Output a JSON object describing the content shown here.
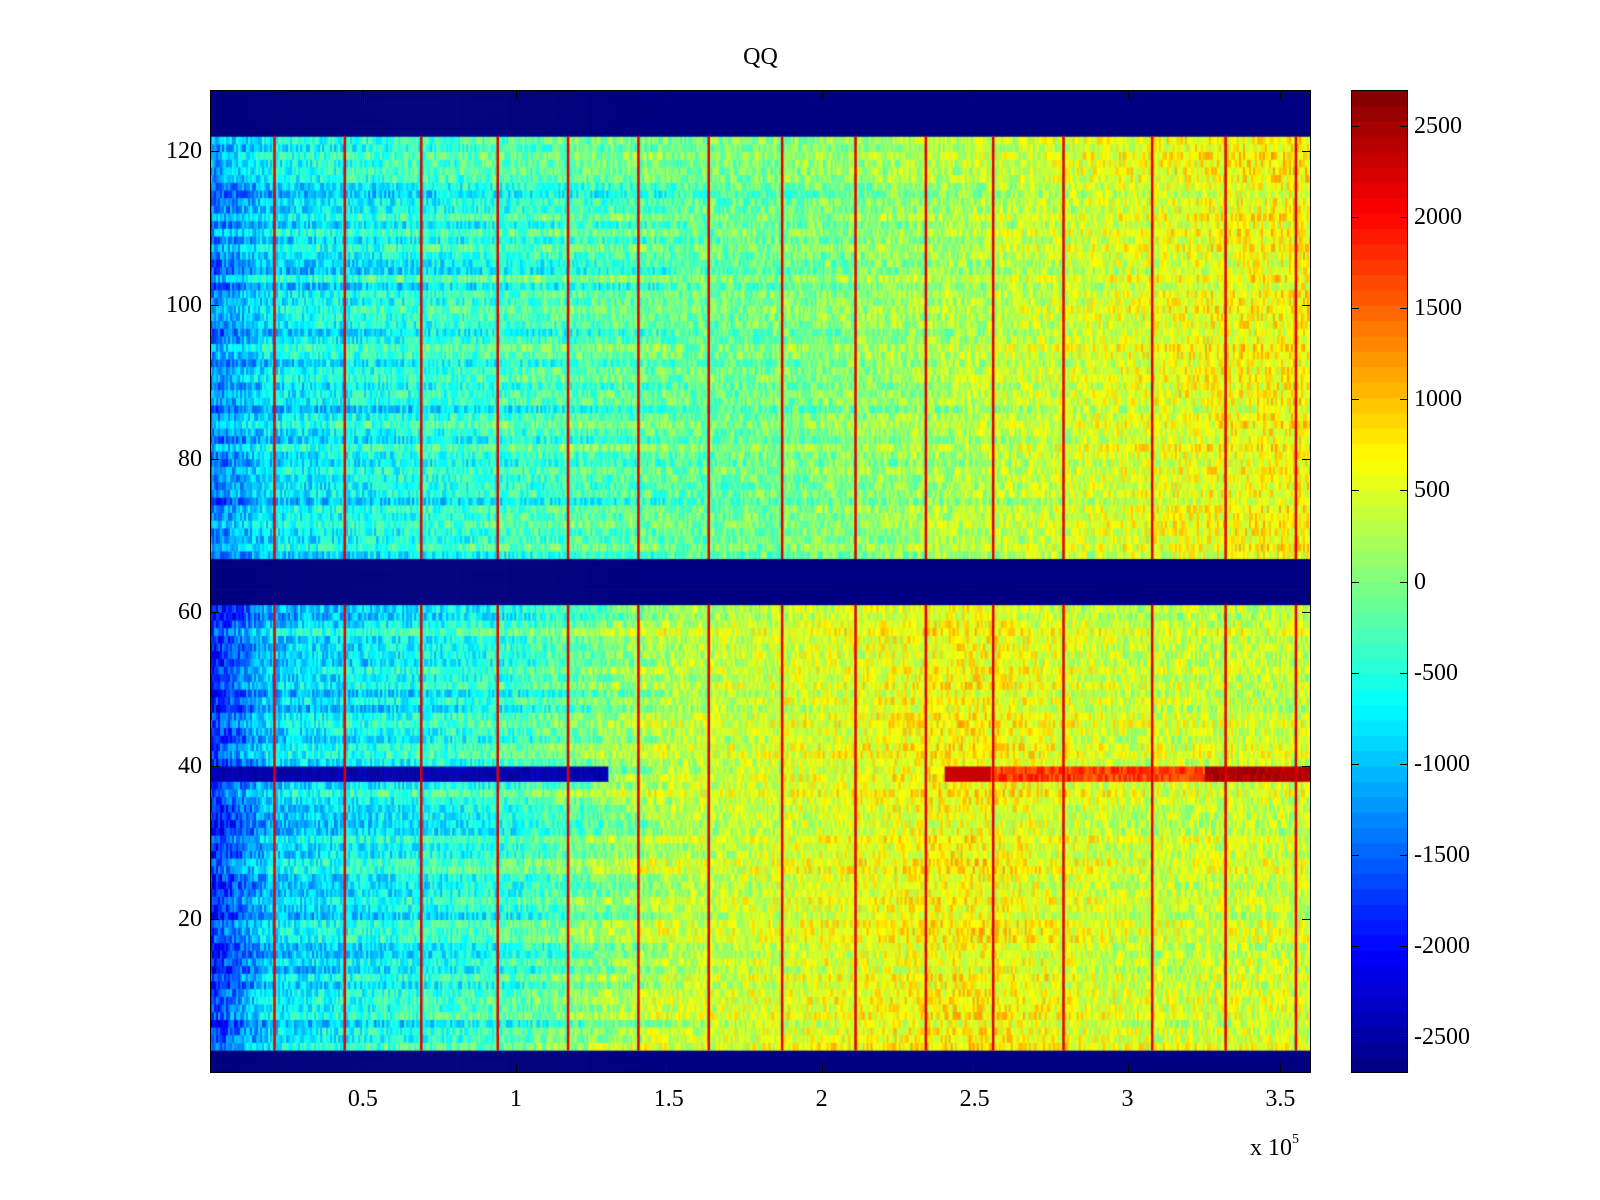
{
  "chart_data": {
    "type": "heatmap",
    "title": "QQ",
    "xlabel": "",
    "ylabel": "",
    "x_multiplier": "x 10",
    "x_exponent": "5",
    "xlim": [
      0,
      3.6
    ],
    "ylim": [
      0,
      128
    ],
    "xticks": [
      {
        "value": 0.5,
        "label": "0.5"
      },
      {
        "value": 1,
        "label": "1"
      },
      {
        "value": 1.5,
        "label": "1.5"
      },
      {
        "value": 2,
        "label": "2"
      },
      {
        "value": 2.5,
        "label": "2.5"
      },
      {
        "value": 3,
        "label": "3"
      },
      {
        "value": 3.5,
        "label": "3.5"
      }
    ],
    "yticks": [
      {
        "value": 20,
        "label": "20"
      },
      {
        "value": 40,
        "label": "40"
      },
      {
        "value": 60,
        "label": "60"
      },
      {
        "value": 80,
        "label": "80"
      },
      {
        "value": 100,
        "label": "100"
      },
      {
        "value": 120,
        "label": "120"
      }
    ],
    "colorbar": {
      "colormap": "jet",
      "clim": [
        -2700,
        2700
      ],
      "ticks": [
        {
          "value": 2500,
          "label": "2500"
        },
        {
          "value": 2000,
          "label": "2000"
        },
        {
          "value": 1500,
          "label": "1500"
        },
        {
          "value": 1000,
          "label": "1000"
        },
        {
          "value": 500,
          "label": "500"
        },
        {
          "value": 0,
          "label": "0"
        },
        {
          "value": -500,
          "label": "-500"
        },
        {
          "value": -1000,
          "label": "-1000"
        },
        {
          "value": -1500,
          "label": "-1500"
        },
        {
          "value": -2000,
          "label": "-2000"
        },
        {
          "value": -2500,
          "label": "-2500"
        }
      ]
    },
    "masked_row_bands": [
      [
        0,
        3
      ],
      [
        61,
        67
      ],
      [
        122,
        128
      ]
    ],
    "masked_value": -2700,
    "vertical_stripes_x": [
      0.21,
      0.44,
      0.69,
      0.94,
      1.17,
      1.4,
      1.63,
      1.87,
      2.11,
      2.34,
      2.56,
      2.79,
      3.08,
      3.32,
      3.55
    ],
    "stripe_value": 2200,
    "row_anomaly": {
      "row_range": [
        38,
        40
      ],
      "low_x_range": [
        0,
        1.3
      ],
      "low_value": -2600,
      "high_x_range": [
        3.25,
        3.6
      ],
      "high_value": 2600
    },
    "trend": {
      "upper_block": {
        "x": [
          0,
          0.2,
          1.0,
          2.0,
          3.0,
          3.6
        ],
        "value": [
          -1400,
          -800,
          -400,
          0,
          500,
          700
        ]
      },
      "lower_block": {
        "x": [
          0,
          0.2,
          1.0,
          1.5,
          2.5,
          3.0,
          3.6
        ],
        "value": [
          -1900,
          -900,
          -400,
          300,
          700,
          400,
          400
        ]
      }
    }
  }
}
